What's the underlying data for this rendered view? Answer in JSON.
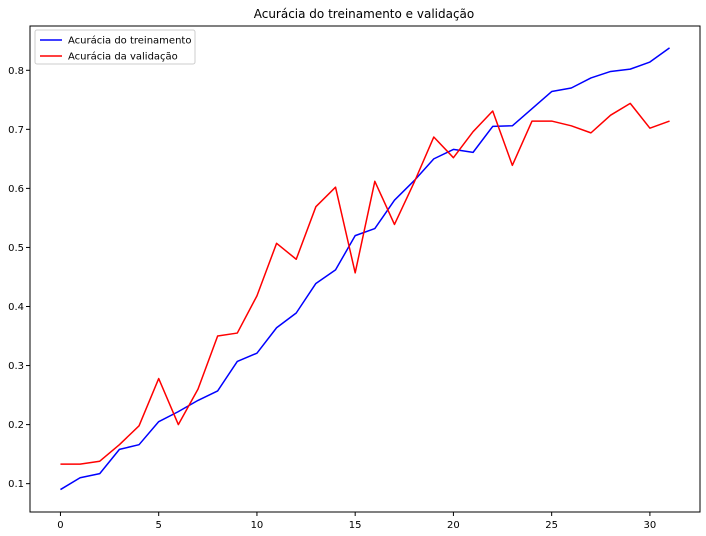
{
  "chart_data": {
    "type": "line",
    "title": "Acurácia do treinamento e validação",
    "xlabel": "",
    "ylabel": "",
    "x": [
      0,
      1,
      2,
      3,
      4,
      5,
      6,
      7,
      8,
      9,
      10,
      11,
      12,
      13,
      14,
      15,
      16,
      17,
      18,
      19,
      20,
      21,
      22,
      23,
      24,
      25,
      26,
      27,
      28,
      29,
      30,
      31
    ],
    "xlim": [
      -1.55,
      32.55
    ],
    "ylim": [
      0.052,
      0.875
    ],
    "xticks": [
      0,
      5,
      10,
      15,
      20,
      25,
      30
    ],
    "yticks": [
      0.1,
      0.2,
      0.3,
      0.4,
      0.5,
      0.6,
      0.7,
      0.8
    ],
    "ytick_labels": [
      "0.1",
      "0.2",
      "0.3",
      "0.4",
      "0.5",
      "0.6",
      "0.7",
      "0.8"
    ],
    "grid": false,
    "legend_position": "upper-left",
    "series": [
      {
        "name": "Acurácia do treinamento",
        "color": "#0000ff",
        "values": [
          0.09,
          0.11,
          0.117,
          0.158,
          0.166,
          0.205,
          0.222,
          0.241,
          0.257,
          0.307,
          0.321,
          0.364,
          0.389,
          0.439,
          0.462,
          0.52,
          0.532,
          0.58,
          0.613,
          0.65,
          0.666,
          0.661,
          0.705,
          0.706,
          0.735,
          0.764,
          0.77,
          0.787,
          0.798,
          0.802,
          0.814,
          0.838
        ]
      },
      {
        "name": "Acurácia da validação",
        "color": "#ff0000",
        "values": [
          0.133,
          0.133,
          0.138,
          0.166,
          0.198,
          0.278,
          0.2,
          0.26,
          0.35,
          0.355,
          0.418,
          0.507,
          0.48,
          0.569,
          0.602,
          0.457,
          0.612,
          0.539,
          0.61,
          0.687,
          0.652,
          0.696,
          0.731,
          0.639,
          0.714,
          0.714,
          0.706,
          0.694,
          0.724,
          0.744,
          0.702,
          0.714
        ]
      }
    ]
  }
}
